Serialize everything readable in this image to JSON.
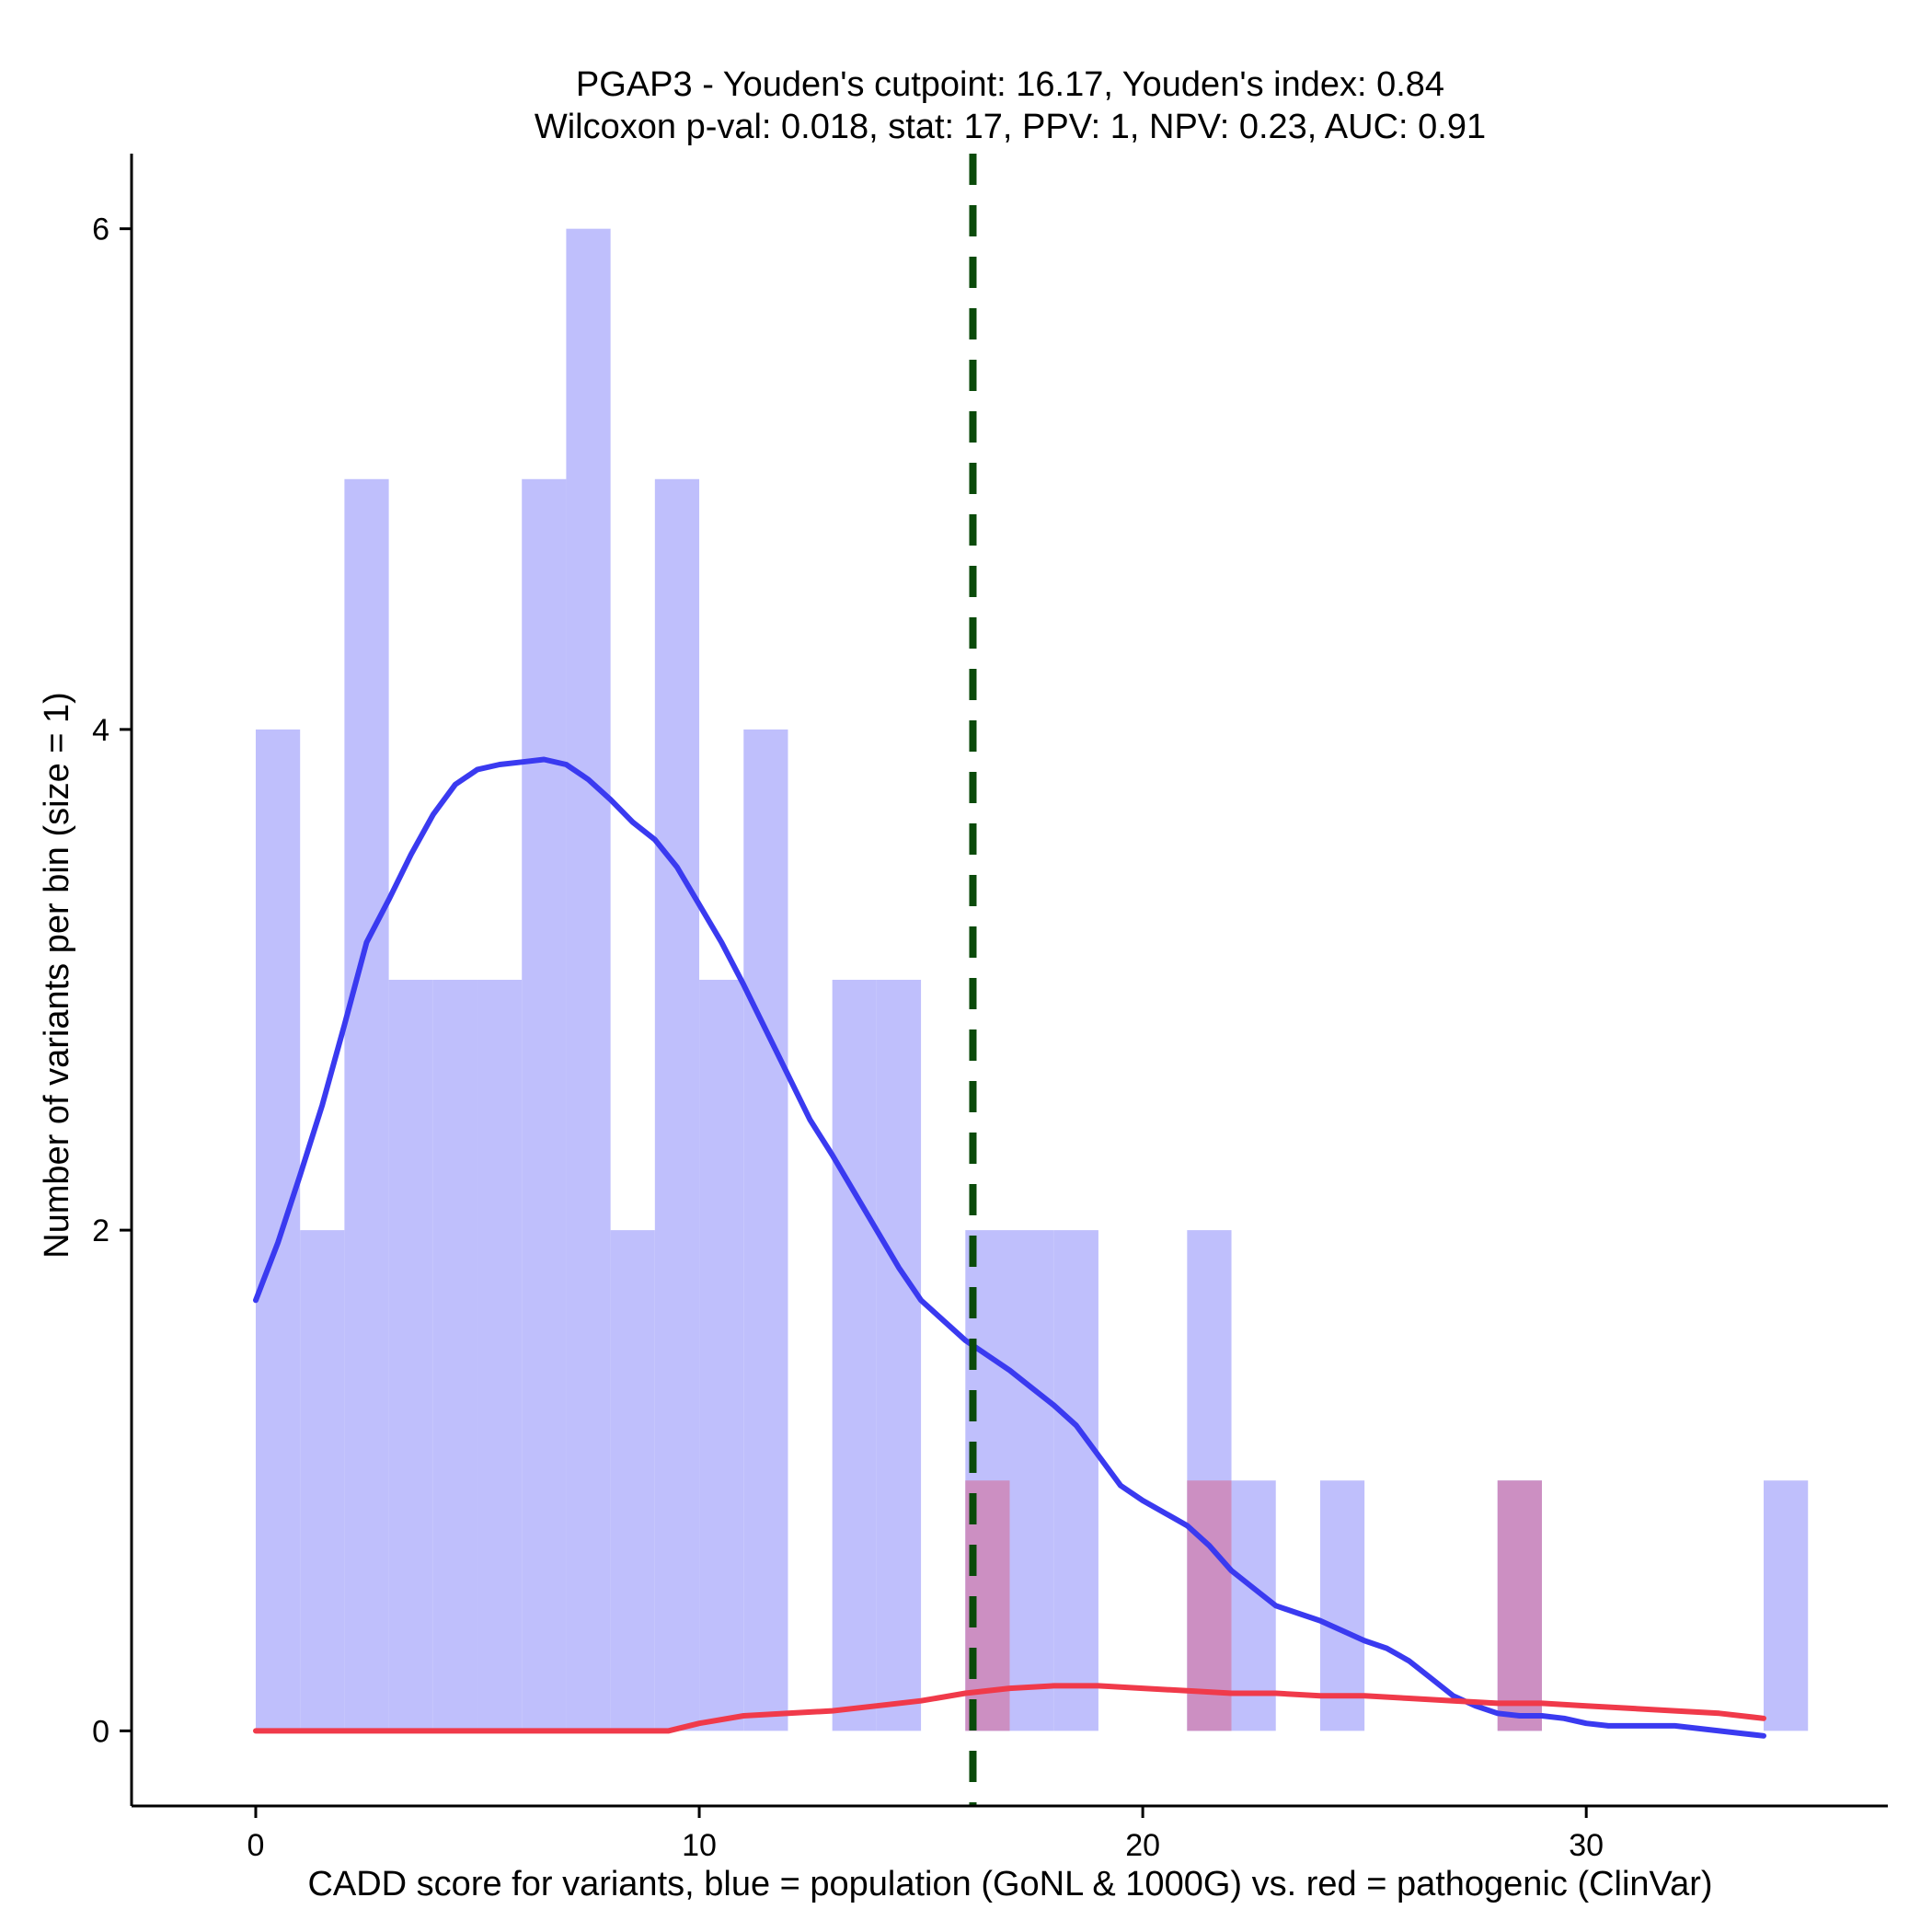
{
  "chart_data": {
    "type": "bar",
    "title_line1": "PGAP3 - Youden's cutpoint: 16.17, Youden's index: 0.84",
    "title_line2": "Wilcoxon p-val: 0.018, stat: 17, PPV: 1, NPV: 0.23, AUC: 0.91",
    "xlabel": "CADD score for variants, blue = population (GoNL & 1000G) vs. red = pathogenic (ClinVar)",
    "ylabel": "Number of variants per bin (size = 1)",
    "xlim": [
      -2.8,
      36.8
    ],
    "ylim": [
      -0.3,
      6.3
    ],
    "x_ticks": [
      0,
      10,
      20,
      30
    ],
    "x_tick_labels": [
      "0",
      "10",
      "20",
      "30"
    ],
    "y_ticks": [
      0,
      2,
      4,
      6
    ],
    "y_tick_labels": [
      "0",
      "2",
      "4",
      "6"
    ],
    "bin_size": 1,
    "cutpoint": 16.17,
    "series": [
      {
        "name": "population (GoNL & 1000G)",
        "color": "#bfbffc",
        "bins": [
          {
            "start": 0,
            "count": 4
          },
          {
            "start": 1,
            "count": 2
          },
          {
            "start": 2,
            "count": 5
          },
          {
            "start": 3,
            "count": 3
          },
          {
            "start": 4,
            "count": 3
          },
          {
            "start": 5,
            "count": 3
          },
          {
            "start": 6,
            "count": 5
          },
          {
            "start": 7,
            "count": 6
          },
          {
            "start": 8,
            "count": 2
          },
          {
            "start": 9,
            "count": 5
          },
          {
            "start": 10,
            "count": 3
          },
          {
            "start": 11,
            "count": 4
          },
          {
            "start": 13,
            "count": 3
          },
          {
            "start": 14,
            "count": 3
          },
          {
            "start": 16,
            "count": 2
          },
          {
            "start": 17,
            "count": 2
          },
          {
            "start": 18,
            "count": 2
          },
          {
            "start": 21,
            "count": 2
          },
          {
            "start": 22,
            "count": 1
          },
          {
            "start": 24,
            "count": 1
          },
          {
            "start": 28,
            "count": 1
          },
          {
            "start": 34,
            "count": 1
          }
        ]
      },
      {
        "name": "pathogenic (ClinVar)",
        "color": "#cc8fc2",
        "bins": [
          {
            "start": 16,
            "count": 1
          },
          {
            "start": 21,
            "count": 1
          },
          {
            "start": 28,
            "count": 1
          }
        ]
      }
    ],
    "density_lines": [
      {
        "name": "population density",
        "color": "#3a3af0",
        "points": [
          [
            0,
            1.72
          ],
          [
            0.5,
            1.95
          ],
          [
            1,
            2.22
          ],
          [
            1.5,
            2.5
          ],
          [
            2,
            2.82
          ],
          [
            2.5,
            3.15
          ],
          [
            3,
            3.32
          ],
          [
            3.5,
            3.5
          ],
          [
            4,
            3.66
          ],
          [
            4.5,
            3.78
          ],
          [
            5,
            3.84
          ],
          [
            5.5,
            3.86
          ],
          [
            6,
            3.87
          ],
          [
            6.5,
            3.88
          ],
          [
            7,
            3.86
          ],
          [
            7.5,
            3.8
          ],
          [
            8,
            3.72
          ],
          [
            8.5,
            3.63
          ],
          [
            9,
            3.56
          ],
          [
            9.5,
            3.45
          ],
          [
            10,
            3.3
          ],
          [
            10.5,
            3.15
          ],
          [
            11,
            2.98
          ],
          [
            11.5,
            2.8
          ],
          [
            12,
            2.62
          ],
          [
            12.5,
            2.44
          ],
          [
            13,
            2.3
          ],
          [
            13.5,
            2.15
          ],
          [
            14,
            2.0
          ],
          [
            14.5,
            1.85
          ],
          [
            15,
            1.72
          ],
          [
            15.5,
            1.64
          ],
          [
            16,
            1.56
          ],
          [
            16.5,
            1.5
          ],
          [
            17,
            1.44
          ],
          [
            17.5,
            1.37
          ],
          [
            18,
            1.3
          ],
          [
            18.5,
            1.22
          ],
          [
            19,
            1.1
          ],
          [
            19.5,
            0.98
          ],
          [
            20,
            0.92
          ],
          [
            20.5,
            0.87
          ],
          [
            21,
            0.82
          ],
          [
            21.5,
            0.74
          ],
          [
            22,
            0.64
          ],
          [
            22.5,
            0.57
          ],
          [
            23,
            0.5
          ],
          [
            23.5,
            0.47
          ],
          [
            24,
            0.44
          ],
          [
            24.5,
            0.4
          ],
          [
            25,
            0.36
          ],
          [
            25.5,
            0.33
          ],
          [
            26,
            0.28
          ],
          [
            26.5,
            0.21
          ],
          [
            27,
            0.14
          ],
          [
            27.5,
            0.1
          ],
          [
            28,
            0.07
          ],
          [
            28.5,
            0.06
          ],
          [
            29,
            0.06
          ],
          [
            29.5,
            0.05
          ],
          [
            30,
            0.03
          ],
          [
            30.5,
            0.02
          ],
          [
            31,
            0.02
          ],
          [
            31.5,
            0.02
          ],
          [
            32,
            0.02
          ],
          [
            32.5,
            0.01
          ],
          [
            33,
            0.0
          ],
          [
            33.5,
            -0.01
          ],
          [
            34,
            -0.02
          ]
        ]
      },
      {
        "name": "pathogenic density",
        "color": "#f03a4a",
        "points": [
          [
            0,
            0
          ],
          [
            1,
            0
          ],
          [
            2,
            0
          ],
          [
            3,
            0
          ],
          [
            4,
            0
          ],
          [
            5,
            0
          ],
          [
            6,
            0
          ],
          [
            7,
            0
          ],
          [
            8,
            0
          ],
          [
            9,
            0
          ],
          [
            9.3,
            0
          ],
          [
            10,
            0.03
          ],
          [
            11,
            0.06
          ],
          [
            12,
            0.07
          ],
          [
            13,
            0.08
          ],
          [
            14,
            0.1
          ],
          [
            15,
            0.12
          ],
          [
            16,
            0.15
          ],
          [
            17,
            0.17
          ],
          [
            18,
            0.18
          ],
          [
            19,
            0.18
          ],
          [
            20,
            0.17
          ],
          [
            21,
            0.16
          ],
          [
            22,
            0.15
          ],
          [
            23,
            0.15
          ],
          [
            24,
            0.14
          ],
          [
            25,
            0.14
          ],
          [
            26,
            0.13
          ],
          [
            27,
            0.12
          ],
          [
            28,
            0.11
          ],
          [
            29,
            0.11
          ],
          [
            30,
            0.1
          ],
          [
            31,
            0.09
          ],
          [
            32,
            0.08
          ],
          [
            33,
            0.07
          ],
          [
            34,
            0.05
          ]
        ]
      }
    ],
    "cutpoint_color": "#0a4a0a"
  }
}
